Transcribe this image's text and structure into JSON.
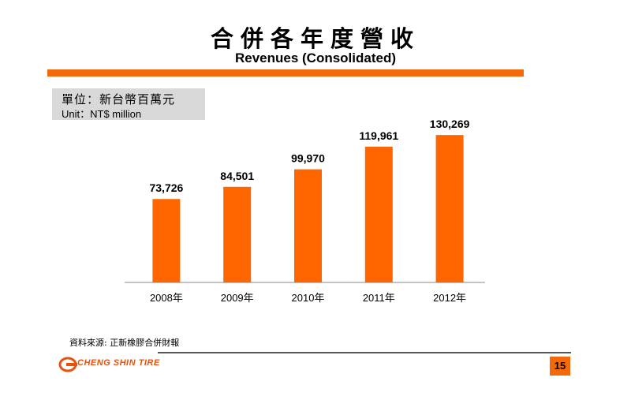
{
  "header": {
    "title_zh": "合併各年度營收",
    "title_en": "Revenues (Consolidated)"
  },
  "unit": {
    "zh": "單位：新台幣百萬元",
    "en": "Unit：NT$ million"
  },
  "chart_data": {
    "type": "bar",
    "categories": [
      "2008年",
      "2009年",
      "2010年",
      "2011年",
      "2012年"
    ],
    "values": [
      73726,
      84501,
      99970,
      119961,
      130269
    ],
    "value_labels": [
      "73,726",
      "84,501",
      "99,970",
      "119,961",
      "130,269"
    ],
    "title": "Revenues (Consolidated)",
    "xlabel": "",
    "ylabel": "",
    "ylim": [
      0,
      145000
    ],
    "grid": false,
    "legend": "none",
    "bar_color": "#ff6600"
  },
  "footer": {
    "source": "資料來源: 正新橡膠合併財報",
    "logo_text": "CHENG SHIN TIRE",
    "page_number": "15"
  },
  "colors": {
    "accent": "#f46a0a",
    "unit_box": "#d9d9d9"
  }
}
